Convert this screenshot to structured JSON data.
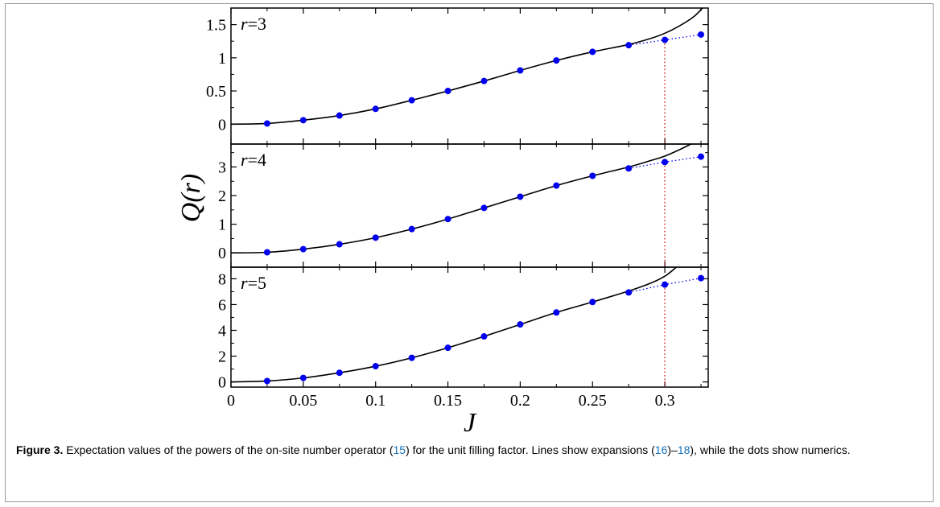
{
  "chart_data": {
    "type": "line",
    "xlabel": "J",
    "ylabel": "Q(r)",
    "xlim": [
      0,
      0.33
    ],
    "xticks": [
      0,
      0.05,
      0.1,
      0.15,
      0.2,
      0.25,
      0.3
    ],
    "xtick_labels": [
      "0",
      "0.05",
      "0.1",
      "0.15",
      "0.2",
      "0.25",
      "0.3"
    ],
    "vline_x": 0.3,
    "panels": [
      {
        "label": "r=3",
        "label_var": "r",
        "label_val": "=3",
        "ylim": [
          -0.3,
          1.75
        ],
        "yticks": [
          0,
          0.5,
          1,
          1.5
        ],
        "ytick_labels": [
          "0",
          "0.5",
          "1",
          "1.5"
        ],
        "dots_x": [
          0.025,
          0.05,
          0.075,
          0.1,
          0.125,
          0.15,
          0.175,
          0.2,
          0.225,
          0.25,
          0.275,
          0.3,
          0.325
        ],
        "dots_y": [
          0.01,
          0.06,
          0.13,
          0.23,
          0.36,
          0.5,
          0.65,
          0.81,
          0.96,
          1.09,
          1.19,
          1.27,
          1.35
        ],
        "line_x": [
          0,
          0.025,
          0.05,
          0.075,
          0.1,
          0.125,
          0.15,
          0.175,
          0.2,
          0.225,
          0.25,
          0.275,
          0.29,
          0.3,
          0.31,
          0.32,
          0.326
        ],
        "line_y": [
          0,
          0.01,
          0.06,
          0.13,
          0.23,
          0.36,
          0.5,
          0.65,
          0.81,
          0.96,
          1.09,
          1.2,
          1.29,
          1.37,
          1.48,
          1.62,
          1.75
        ]
      },
      {
        "label": "r=4",
        "label_var": "r",
        "label_val": "=4",
        "ylim": [
          -0.5,
          3.8
        ],
        "yticks": [
          0,
          1,
          2,
          3
        ],
        "ytick_labels": [
          "0",
          "1",
          "2",
          "3"
        ],
        "dots_x": [
          0.025,
          0.05,
          0.075,
          0.1,
          0.125,
          0.15,
          0.175,
          0.2,
          0.225,
          0.25,
          0.275,
          0.3,
          0.325
        ],
        "dots_y": [
          0.02,
          0.13,
          0.3,
          0.53,
          0.83,
          1.18,
          1.57,
          1.96,
          2.35,
          2.69,
          2.95,
          3.17,
          3.36
        ],
        "line_x": [
          0,
          0.025,
          0.05,
          0.075,
          0.1,
          0.125,
          0.15,
          0.175,
          0.2,
          0.225,
          0.25,
          0.275,
          0.29,
          0.3,
          0.31,
          0.318
        ],
        "line_y": [
          0,
          0.02,
          0.13,
          0.3,
          0.53,
          0.83,
          1.18,
          1.57,
          1.96,
          2.35,
          2.69,
          3.0,
          3.22,
          3.38,
          3.6,
          3.8
        ]
      },
      {
        "label": "r=5",
        "label_var": "r",
        "label_val": "=5",
        "ylim": [
          -0.4,
          8.9
        ],
        "yticks": [
          0,
          2,
          4,
          6,
          8
        ],
        "ytick_labels": [
          "0",
          "2",
          "4",
          "6",
          "8"
        ],
        "dots_x": [
          0.025,
          0.05,
          0.075,
          0.1,
          0.125,
          0.15,
          0.175,
          0.2,
          0.225,
          0.25,
          0.275,
          0.3,
          0.325
        ],
        "dots_y": [
          0.07,
          0.31,
          0.71,
          1.22,
          1.87,
          2.65,
          3.53,
          4.46,
          5.39,
          6.2,
          6.94,
          7.55,
          8.05
        ],
        "line_x": [
          0,
          0.025,
          0.05,
          0.075,
          0.1,
          0.125,
          0.15,
          0.175,
          0.2,
          0.225,
          0.25,
          0.275,
          0.29,
          0.3,
          0.308
        ],
        "line_y": [
          0,
          0.07,
          0.31,
          0.71,
          1.22,
          1.87,
          2.65,
          3.53,
          4.46,
          5.39,
          6.2,
          7.05,
          7.65,
          8.2,
          8.9
        ]
      }
    ]
  },
  "caption": {
    "label": "Figure 3.",
    "part1": " Expectation values of the powers of the on-site number operator (",
    "ref1": "15",
    "part2": ") for the unit filling factor. Lines show expansions (",
    "ref2": "16",
    "part3": ")–",
    "ref3": "18",
    "part4": "), while the dots show numerics."
  },
  "colors": {
    "dots": "#0000ee",
    "dotted_line": "#0000ee",
    "curve": "#000000",
    "vline": "#cc0000"
  }
}
